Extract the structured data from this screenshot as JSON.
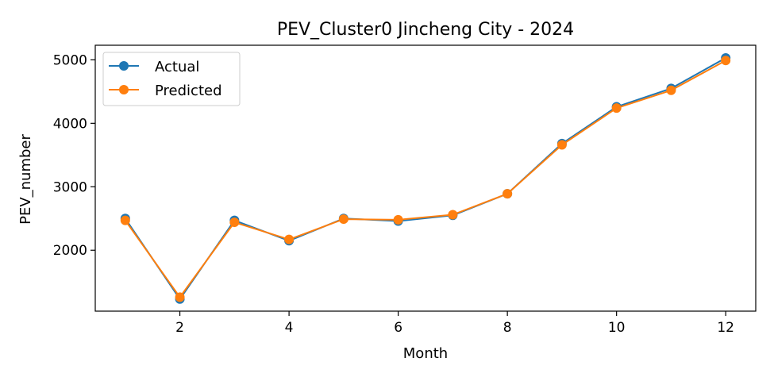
{
  "chart_data": {
    "type": "line",
    "title": "PEV_Cluster0 Jincheng City - 2024",
    "xlabel": "Month",
    "ylabel": "PEV_number",
    "x": [
      1,
      2,
      3,
      4,
      5,
      6,
      7,
      8,
      9,
      10,
      11,
      12
    ],
    "xlim": [
      0.45,
      12.55
    ],
    "ylim": [
      1040,
      5230
    ],
    "xticks": [
      2,
      4,
      6,
      8,
      10,
      12
    ],
    "yticks": [
      2000,
      3000,
      4000,
      5000
    ],
    "grid": false,
    "legend_position": "top-left",
    "series": [
      {
        "name": "Actual",
        "color": "#1f77b4",
        "values": [
          2500,
          1230,
          2470,
          2150,
          2500,
          2460,
          2550,
          2890,
          3680,
          4260,
          4550,
          5030
        ]
      },
      {
        "name": "Predicted",
        "color": "#ff7f0e",
        "values": [
          2470,
          1260,
          2440,
          2170,
          2490,
          2480,
          2560,
          2890,
          3660,
          4240,
          4520,
          4990
        ]
      }
    ]
  }
}
